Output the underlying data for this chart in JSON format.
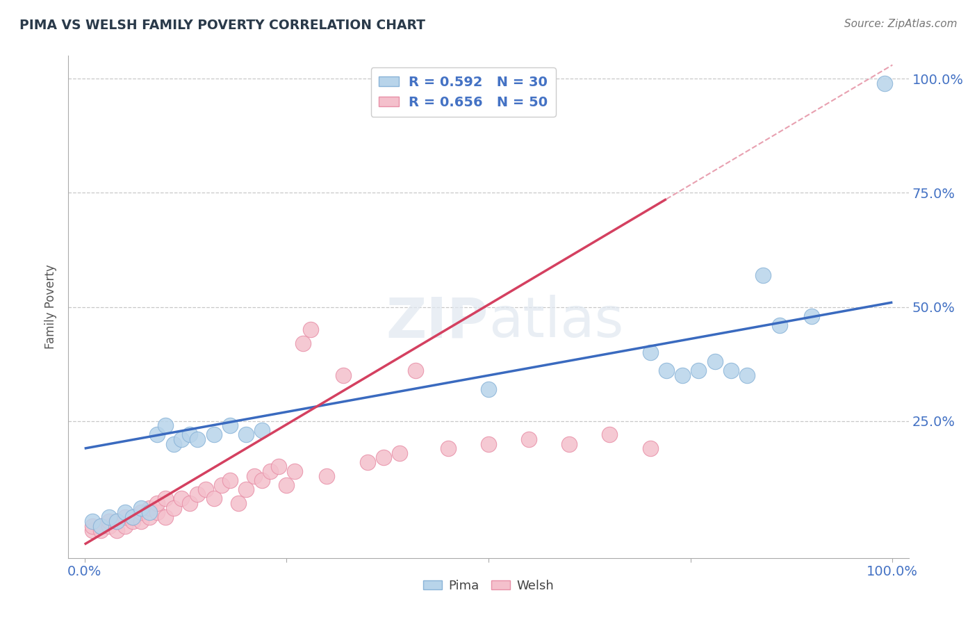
{
  "title": "PIMA VS WELSH FAMILY POVERTY CORRELATION CHART",
  "source": "Source: ZipAtlas.com",
  "ylabel": "Family Poverty",
  "xlim": [
    -0.02,
    1.02
  ],
  "ylim": [
    -0.05,
    1.05
  ],
  "background_color": "#ffffff",
  "pima_color": "#b8d4ea",
  "pima_edge_color": "#8ab4d8",
  "welsh_color": "#f4c0cc",
  "welsh_edge_color": "#e890a8",
  "pima_line_color": "#3a6abf",
  "welsh_line_color": "#d44060",
  "welsh_dash_color": "#e8a0b0",
  "pima_R": 0.592,
  "pima_N": 30,
  "welsh_R": 0.656,
  "welsh_N": 50,
  "grid_color": "#c8c8c8",
  "title_color": "#2a3a4a",
  "tick_color": "#4472c4",
  "label_color": "#555555",
  "legend_text_color": "#4472c4",
  "pima_intercept": 0.19,
  "pima_slope": 0.32,
  "welsh_intercept": -0.02,
  "welsh_slope": 1.05,
  "pima_points_x": [
    0.01,
    0.02,
    0.03,
    0.04,
    0.05,
    0.06,
    0.07,
    0.08,
    0.09,
    0.1,
    0.11,
    0.12,
    0.13,
    0.14,
    0.16,
    0.18,
    0.2,
    0.22,
    0.5,
    0.7,
    0.72,
    0.74,
    0.76,
    0.78,
    0.8,
    0.82,
    0.84,
    0.86,
    0.9,
    0.99
  ],
  "pima_points_y": [
    0.03,
    0.02,
    0.04,
    0.03,
    0.05,
    0.04,
    0.06,
    0.05,
    0.22,
    0.24,
    0.2,
    0.21,
    0.22,
    0.21,
    0.22,
    0.24,
    0.22,
    0.23,
    0.32,
    0.4,
    0.36,
    0.35,
    0.36,
    0.38,
    0.36,
    0.35,
    0.57,
    0.46,
    0.48,
    0.99
  ],
  "welsh_points_x": [
    0.01,
    0.01,
    0.02,
    0.02,
    0.03,
    0.03,
    0.04,
    0.04,
    0.05,
    0.05,
    0.06,
    0.06,
    0.07,
    0.07,
    0.08,
    0.08,
    0.09,
    0.09,
    0.1,
    0.1,
    0.11,
    0.12,
    0.13,
    0.14,
    0.15,
    0.16,
    0.17,
    0.18,
    0.19,
    0.2,
    0.21,
    0.22,
    0.23,
    0.24,
    0.25,
    0.26,
    0.27,
    0.28,
    0.3,
    0.32,
    0.35,
    0.37,
    0.39,
    0.41,
    0.45,
    0.5,
    0.55,
    0.6,
    0.65,
    0.7
  ],
  "welsh_points_y": [
    0.01,
    0.02,
    0.01,
    0.02,
    0.02,
    0.03,
    0.01,
    0.03,
    0.02,
    0.04,
    0.03,
    0.04,
    0.03,
    0.05,
    0.04,
    0.06,
    0.05,
    0.07,
    0.04,
    0.08,
    0.06,
    0.08,
    0.07,
    0.09,
    0.1,
    0.08,
    0.11,
    0.12,
    0.07,
    0.1,
    0.13,
    0.12,
    0.14,
    0.15,
    0.11,
    0.14,
    0.42,
    0.45,
    0.13,
    0.35,
    0.16,
    0.17,
    0.18,
    0.36,
    0.19,
    0.2,
    0.21,
    0.2,
    0.22,
    0.19
  ]
}
